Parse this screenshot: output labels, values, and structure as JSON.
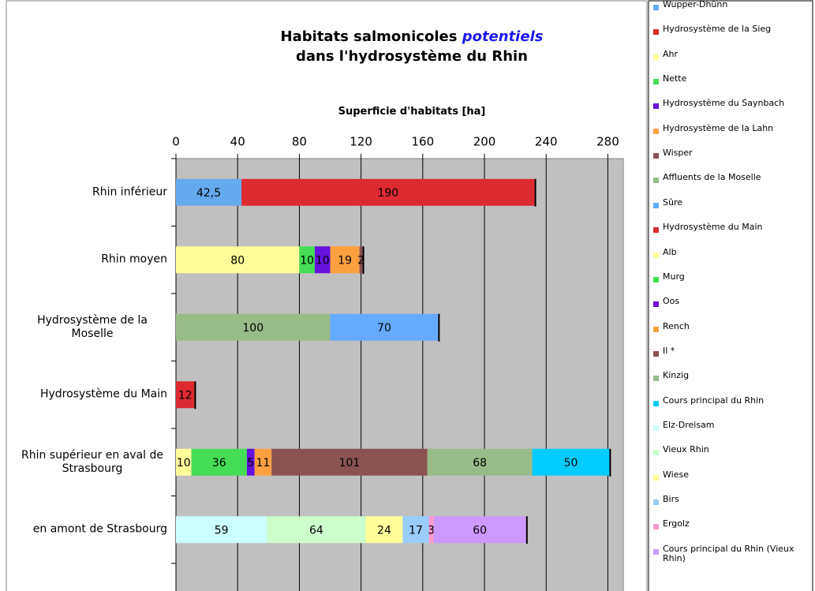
{
  "chart_data": {
    "type": "stacked-bar-horizontal",
    "title": [
      "Habitats salmonicoles",
      "potentiels",
      "dans l'hydrosystème du Rhin"
    ],
    "x_label": "Superficie d'habitats [ha]",
    "categories": [
      "Rhin inférieur",
      "Rhin moyen",
      "Hydrosystème de la Moselle",
      "Hydrosystème du Main",
      "Rhin supérieur en aval de Strasbourg",
      "en amont de Strasbourg"
    ],
    "xlim": [
      0,
      290
    ],
    "xticks": [
      0,
      40,
      80,
      120,
      160,
      200,
      240,
      280
    ],
    "grid": true,
    "legend": "right",
    "series": [
      {
        "name": "Wupper-Dhünn",
        "color": "#66aaee",
        "values": [
          42.5,
          null,
          null,
          null,
          null,
          null
        ],
        "value_labels": [
          "42,5",
          null,
          null,
          null,
          null,
          null
        ]
      },
      {
        "name": "Hydrosystème de la Sieg",
        "color": "#dd2a30",
        "values": [
          190,
          null,
          null,
          null,
          null,
          null
        ]
      },
      {
        "name": "Ahr",
        "color": "#ffff99",
        "values": [
          null,
          80,
          null,
          null,
          null,
          null
        ]
      },
      {
        "name": "Nette",
        "color": "#44dd55",
        "values": [
          null,
          10,
          null,
          null,
          null,
          null
        ]
      },
      {
        "name": "Hydrosystème du Saynbach",
        "color": "#6611dd",
        "values": [
          null,
          10,
          null,
          null,
          null,
          null
        ]
      },
      {
        "name": "Hydrosystème de la Lahn",
        "color": "#ffa040",
        "values": [
          null,
          19,
          null,
          null,
          null,
          null
        ]
      },
      {
        "name": "Wisper",
        "color": "#8b5252",
        "values": [
          null,
          2,
          null,
          null,
          null,
          null
        ]
      },
      {
        "name": "Affluents de la Moselle",
        "color": "#99bb88",
        "values": [
          null,
          null,
          100,
          null,
          null,
          null
        ]
      },
      {
        "name": "Sûre",
        "color": "#66aaff",
        "values": [
          null,
          null,
          70,
          null,
          null,
          null
        ]
      },
      {
        "name": "Hydrosystème du Main",
        "color": "#dd2a30",
        "values": [
          null,
          null,
          null,
          12,
          null,
          null
        ]
      },
      {
        "name": "Alb",
        "color": "#ffff99",
        "values": [
          null,
          null,
          null,
          null,
          10,
          null
        ]
      },
      {
        "name": "Murg",
        "color": "#44dd55",
        "values": [
          null,
          null,
          null,
          null,
          36,
          null
        ]
      },
      {
        "name": "Oos",
        "color": "#6611dd",
        "values": [
          null,
          null,
          null,
          null,
          5,
          null
        ]
      },
      {
        "name": "Rench",
        "color": "#ffa040",
        "values": [
          null,
          null,
          null,
          null,
          11,
          null
        ]
      },
      {
        "name": "Il *",
        "color": "#8b5252",
        "values": [
          null,
          null,
          null,
          null,
          101,
          null
        ]
      },
      {
        "name": "Kinzig",
        "color": "#99bb88",
        "values": [
          null,
          null,
          null,
          null,
          68,
          null
        ]
      },
      {
        "name": "Cours principal du Rhin",
        "color": "#00ccff",
        "values": [
          null,
          null,
          null,
          null,
          50,
          null
        ]
      },
      {
        "name": "Elz-Dreisam",
        "color": "#ccffff",
        "values": [
          null,
          null,
          null,
          null,
          null,
          59
        ]
      },
      {
        "name": "Vieux Rhin",
        "color": "#ccffcc",
        "values": [
          null,
          null,
          null,
          null,
          null,
          64
        ]
      },
      {
        "name": "Wiese",
        "color": "#ffff99",
        "values": [
          null,
          null,
          null,
          null,
          null,
          24
        ]
      },
      {
        "name": "Birs",
        "color": "#99ccff",
        "values": [
          null,
          null,
          null,
          null,
          null,
          17
        ]
      },
      {
        "name": "Ergolz",
        "color": "#ff99cc",
        "values": [
          null,
          null,
          null,
          null,
          null,
          3
        ]
      },
      {
        "name": "Cours principal du Rhin (Vieux Rhin)",
        "color": "#cc99ff",
        "values": [
          null,
          null,
          null,
          null,
          null,
          60
        ]
      }
    ]
  }
}
